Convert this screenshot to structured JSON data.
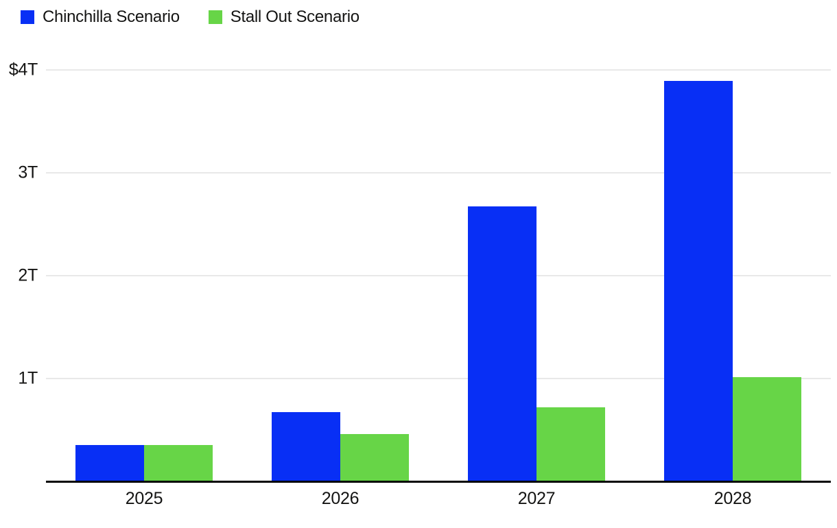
{
  "chart_data": {
    "type": "bar",
    "title": "",
    "categories": [
      "2025",
      "2026",
      "2027",
      "2028"
    ],
    "series": [
      {
        "name": "Chinchilla Scenario",
        "color": "#082FF5",
        "values": [
          0.35,
          0.67,
          2.67,
          3.89
        ]
      },
      {
        "name": "Stall Out Scenario",
        "color": "#67D547",
        "values": [
          0.35,
          0.46,
          0.72,
          1.01
        ]
      }
    ],
    "yticks": [
      {
        "label": "$4T",
        "value": 4
      },
      {
        "label": "3T",
        "value": 3
      },
      {
        "label": "2T",
        "value": 2
      },
      {
        "label": "1T",
        "value": 1
      }
    ],
    "ylim": [
      0,
      4.2
    ],
    "unit": "trillion USD",
    "grid": "horizontal",
    "legend_position": "top-left",
    "colors": {
      "gridline": "#e8e8e8",
      "axis": "#000000",
      "text": "#141413",
      "background": "#ffffff"
    }
  }
}
